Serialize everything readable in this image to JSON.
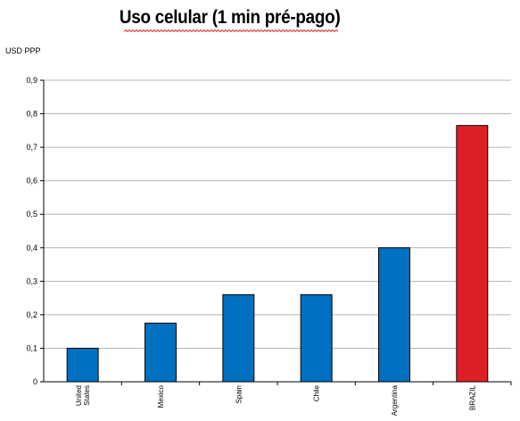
{
  "chart_data": {
    "type": "bar",
    "title": "Uso celular (1 min pré-pago)",
    "ylabel": "USD PPP",
    "xlabel": "",
    "categories": [
      "United States",
      "Mexico",
      "Spain",
      "Chile",
      "Argentina",
      "BRAZIL"
    ],
    "category_label_lines": [
      [
        "United",
        "States"
      ],
      [
        "Mexico"
      ],
      [
        "Spain"
      ],
      [
        "Chile"
      ],
      [
        "Argentina"
      ],
      [
        "BRAZIL"
      ]
    ],
    "values": [
      0.1,
      0.175,
      0.26,
      0.26,
      0.4,
      0.765
    ],
    "bar_colors": [
      "#0070c0",
      "#0070c0",
      "#0070c0",
      "#0070c0",
      "#0070c0",
      "#dd2027"
    ],
    "ylim": [
      0,
      0.9
    ],
    "yticks": [
      0,
      0.1,
      0.2,
      0.3,
      0.4,
      0.5,
      0.6,
      0.7,
      0.8,
      0.9
    ],
    "ytick_labels": [
      "0",
      "0,1",
      "0,2",
      "0,3",
      "0,4",
      "0,5",
      "0,6",
      "0,7",
      "0,8",
      "0,9"
    ],
    "grid": true,
    "legend": "none"
  },
  "colors": {
    "gridline": "#b4b4b4",
    "axis": "#000000",
    "highlight": "#dd2027",
    "default_bar": "#0070c0",
    "spellcheck_underline": "#e03030"
  }
}
